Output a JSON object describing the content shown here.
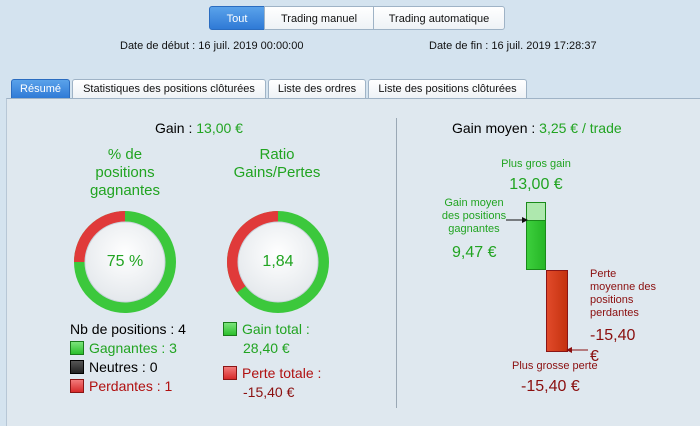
{
  "top_buttons": [
    "Tout",
    "Trading manuel",
    "Trading automatique"
  ],
  "dates": {
    "start": "Date de début :  16 juil. 2019 00:00:00",
    "end": "Date de fin :  16 juil. 2019 17:28:37"
  },
  "tabs": [
    "Résumé",
    "Statistiques des positions clôturées",
    "Liste des ordres",
    "Liste des positions clôturées"
  ],
  "left": {
    "gain_label": "Gain :",
    "gain_value": "13,00 €",
    "win_title_lines": [
      "% de",
      "positions",
      "gagnantes"
    ],
    "win_pct": "75 %",
    "win_fraction": 0.75,
    "ratio_title_lines": [
      "Ratio",
      "Gains/Pertes"
    ],
    "ratio_value": "1,84",
    "ratio_fraction": 0.648,
    "nb_positions": "Nb de positions : 4",
    "winners": "Gagnantes : 3",
    "neutral": "Neutres : 0",
    "losers": "Perdantes : 1",
    "gain_total_label": "Gain total :",
    "gain_total_value": "28,40 €",
    "loss_total_label": "Perte totale :",
    "loss_total_value": "-15,40 €"
  },
  "right": {
    "avg_gain_label": "Gain moyen :",
    "avg_gain_value": "3,25 € / trade",
    "biggest_gain_label": "Plus gros gain",
    "biggest_gain_value": "13,00 €",
    "avg_win_label_lines": [
      "Gain moyen",
      "des positions",
      "gagnantes"
    ],
    "avg_win_value": "9,47 €",
    "avg_loss_label_lines": [
      "Perte",
      "moyenne des",
      "positions",
      "perdantes"
    ],
    "avg_loss_value": "-15,40",
    "avg_loss_unit": "€",
    "biggest_loss_label": "Plus grosse perte",
    "biggest_loss_value": "-15,40 €"
  },
  "colors": {
    "green": "#21a421",
    "red": "#b01010",
    "accent": "#2f7ad6"
  }
}
